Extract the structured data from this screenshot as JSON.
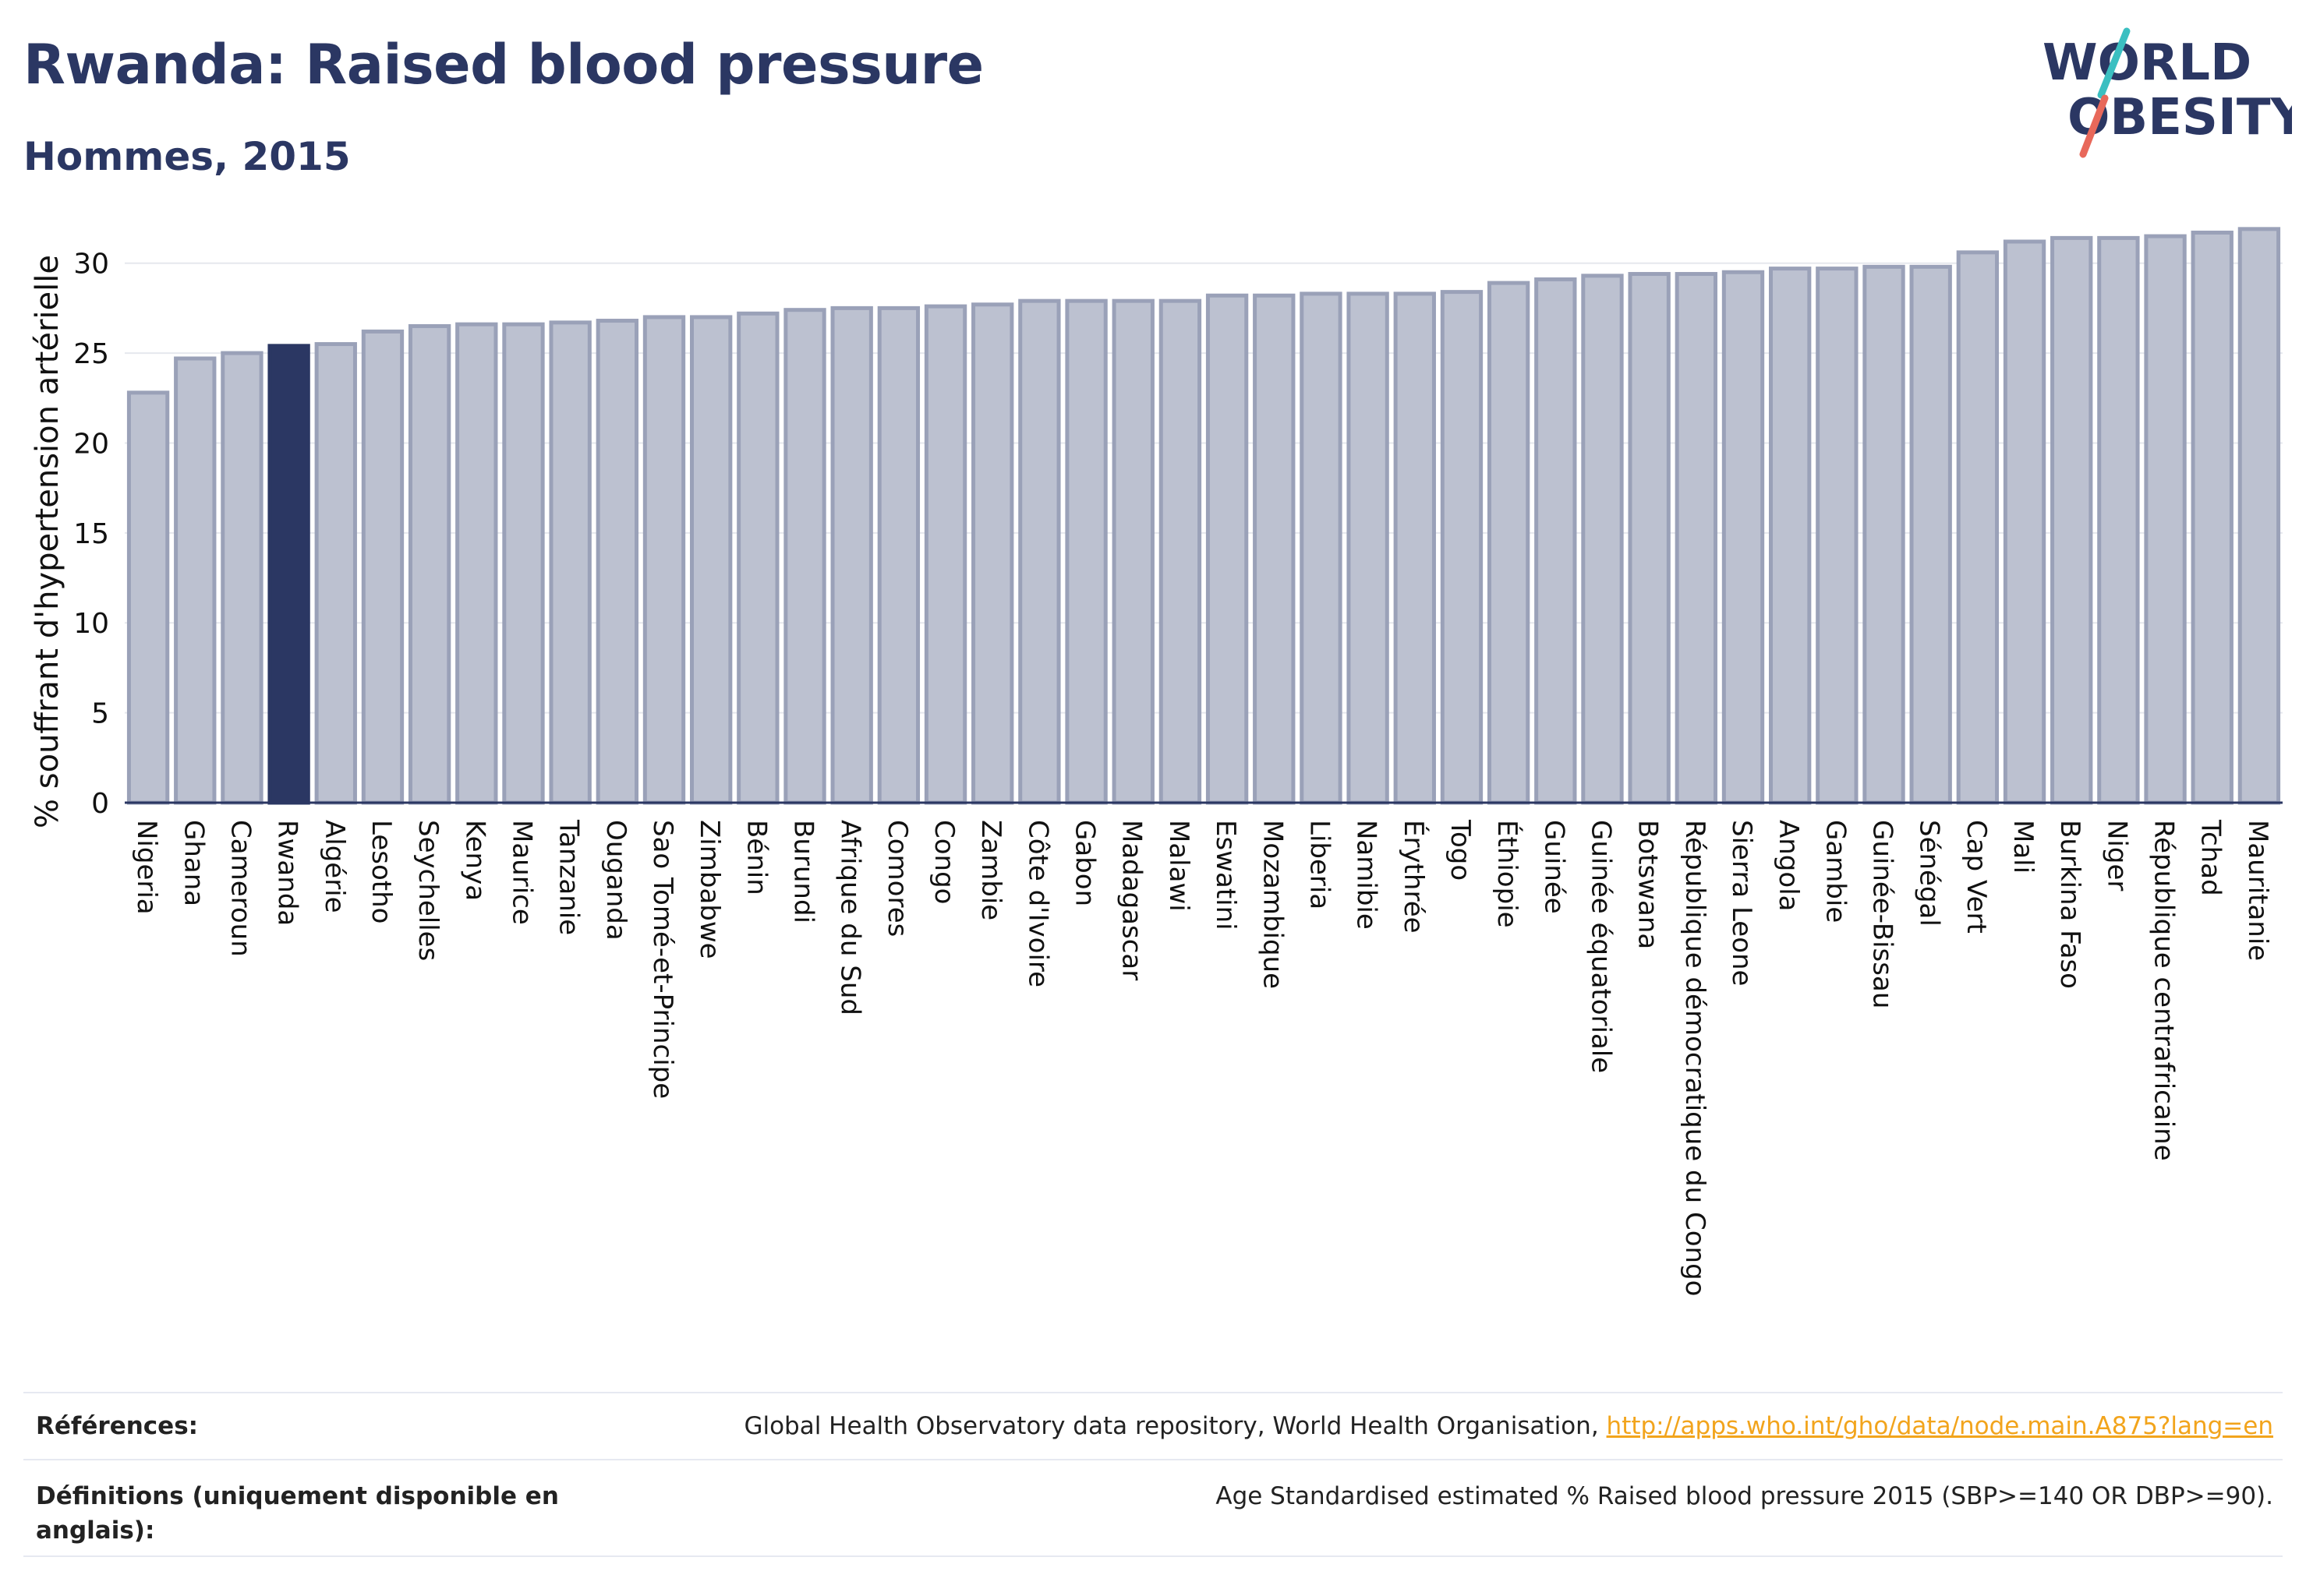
{
  "header": {
    "title": "Rwanda: Raised blood pressure",
    "subtitle": "Hommes, 2015",
    "logo_line1": "WORLD",
    "logo_line2": "OBESITY"
  },
  "colors": {
    "navy": "#2b3763",
    "bar": "#bcc1d0",
    "bar_edge": "#9aa1b8",
    "highlight": "#2b3763",
    "logo_teal": "#3bbfc1",
    "logo_coral": "#e8685a",
    "link": "#f2a41c"
  },
  "chart_data": {
    "type": "bar",
    "ylabel": "% souffrant d'hypertension artérielle",
    "ylim": [
      0,
      32.5
    ],
    "yticks": [
      0,
      5,
      10,
      15,
      20,
      25,
      30
    ],
    "grid": true,
    "highlight": "Rwanda",
    "categories": [
      "Nigeria",
      "Ghana",
      "Cameroun",
      "Rwanda",
      "Algérie",
      "Lesotho",
      "Seychelles",
      "Kenya",
      "Maurice",
      "Tanzanie",
      "Ouganda",
      "Sao Tomé-et-Principe",
      "Zimbabwe",
      "Bénin",
      "Burundi",
      "Afrique du Sud",
      "Comores",
      "Congo",
      "Zambie",
      "Côte d'Ivoire",
      "Gabon",
      "Madagascar",
      "Malawi",
      "Eswatini",
      "Mozambique",
      "Liberia",
      "Namibie",
      "Érythrée",
      "Togo",
      "Éthiopie",
      "Guinée",
      "Guinée équatoriale",
      "Botswana",
      "République démocratique du Congo",
      "Sierra Leone",
      "Angola",
      "Gambie",
      "Guinée-Bissau",
      "Sénégal",
      "Cap Vert",
      "Mali",
      "Burkina Faso",
      "Niger",
      "République centrafricaine",
      "Tchad",
      "Mauritanie"
    ],
    "values": [
      22.8,
      24.7,
      25.0,
      25.4,
      25.5,
      26.2,
      26.5,
      26.6,
      26.6,
      26.7,
      26.8,
      27.0,
      27.0,
      27.2,
      27.4,
      27.5,
      27.5,
      27.6,
      27.7,
      27.9,
      27.9,
      27.9,
      27.9,
      28.2,
      28.2,
      28.3,
      28.3,
      28.3,
      28.4,
      28.9,
      29.1,
      29.3,
      29.4,
      29.4,
      29.5,
      29.7,
      29.7,
      29.8,
      29.8,
      30.6,
      31.2,
      31.4,
      31.4,
      31.5,
      31.7,
      31.9
    ]
  },
  "footer": {
    "references_label": "Références:",
    "references_text": "Global Health Observatory data repository, World Health Organisation, ",
    "references_link": "http://apps.who.int/gho/data/node.main.A875?lang=en",
    "definitions_label_line1": "Définitions (uniquement disponible en",
    "definitions_label_line2": "anglais):",
    "definitions_text": "Age Standardised estimated % Raised blood pressure 2015 (SBP>=140 OR DBP>=90)."
  }
}
